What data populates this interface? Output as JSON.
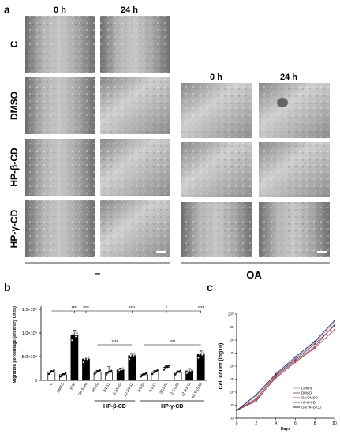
{
  "panel_a": {
    "label": "a",
    "time_labels": [
      "0 h",
      "24 h"
    ],
    "rows": [
      "C",
      "DMSO",
      "HP-β-CD",
      "HP-γ-CD"
    ],
    "group_labels": [
      "–",
      "OA"
    ],
    "oa_rows": [
      "DMSO",
      "HP-β-CD",
      "HP-γ-CD"
    ]
  },
  "panel_b": {
    "label": "b"
  },
  "panel_c": {
    "label": "c"
  },
  "chart_data": [
    {
      "type": "bar",
      "ylabel": "Migration percentage (arbitrary units)",
      "ylim": [
        0,
        150000
      ],
      "yticks": [
        "0",
        "5.0×10⁴",
        "1.0×10⁵",
        "1.5×10⁵"
      ],
      "yticks_values": [
        0,
        50000,
        100000,
        150000
      ],
      "categories": [
        "C",
        "DMSO",
        "EGF",
        "OA 5 μM",
        "0/0.62",
        "0/1.12",
        "2.5/0.62",
        "12.5/3.12",
        "0/0.62",
        "0/3.12",
        "0/15.62",
        "2.5/0.62",
        "12.5/3.12",
        "62.5/15.62"
      ],
      "values": [
        18000,
        12000,
        96000,
        45000,
        18000,
        17000,
        22000,
        52000,
        12000,
        18000,
        28000,
        17000,
        20000,
        55000
      ],
      "errors": [
        2500,
        2500,
        10000,
        4000,
        3000,
        12000,
        4000,
        5000,
        2000,
        3000,
        3000,
        3000,
        5000,
        7000
      ],
      "bar_fill": [
        "white",
        "white",
        "black",
        "black",
        "white",
        "white",
        "black",
        "black",
        "white",
        "white",
        "white",
        "white",
        "black",
        "black"
      ],
      "group_labels": [
        "HP-β-CD",
        "HP-γ-CD"
      ],
      "significance": [
        "****",
        "****",
        "****",
        "*",
        "****",
        "****",
        "****"
      ]
    },
    {
      "type": "line",
      "ylabel": "Cell count (log10)",
      "xlabel": "Days",
      "x": [
        0,
        2,
        4,
        6,
        8,
        10
      ],
      "xticks": [
        "0",
        "2",
        "4",
        "6",
        "8",
        "10"
      ],
      "yticks": [
        "10²",
        "10³",
        "10⁴",
        "10⁵",
        "10⁶",
        "10⁷",
        "10⁸",
        "10⁹",
        "10¹⁰"
      ],
      "ylim_exponent": [
        2,
        10
      ],
      "series": [
        {
          "name": "Control",
          "color": "#9fb3d6",
          "values": [
            2.6,
            3.7,
            5.3,
            6.6,
            7.8,
            9.4
          ]
        },
        {
          "name": "DMSO",
          "color": "#6a6a9a",
          "values": [
            2.6,
            3.3,
            5.2,
            6.4,
            7.5,
            9.2
          ]
        },
        {
          "name": "OA/DMSO",
          "color": "#e0302a",
          "values": [
            2.6,
            3.4,
            5.1,
            6.3,
            7.4,
            8.8
          ]
        },
        {
          "name": "HP-β-CD",
          "color": "#8b3a3a",
          "values": [
            2.6,
            3.5,
            5.3,
            6.5,
            7.7,
            9.1
          ]
        },
        {
          "name": "OA/HP-β-CD",
          "color": "#1e2a78",
          "values": [
            2.6,
            3.8,
            5.4,
            6.7,
            7.9,
            9.5
          ]
        }
      ]
    }
  ]
}
